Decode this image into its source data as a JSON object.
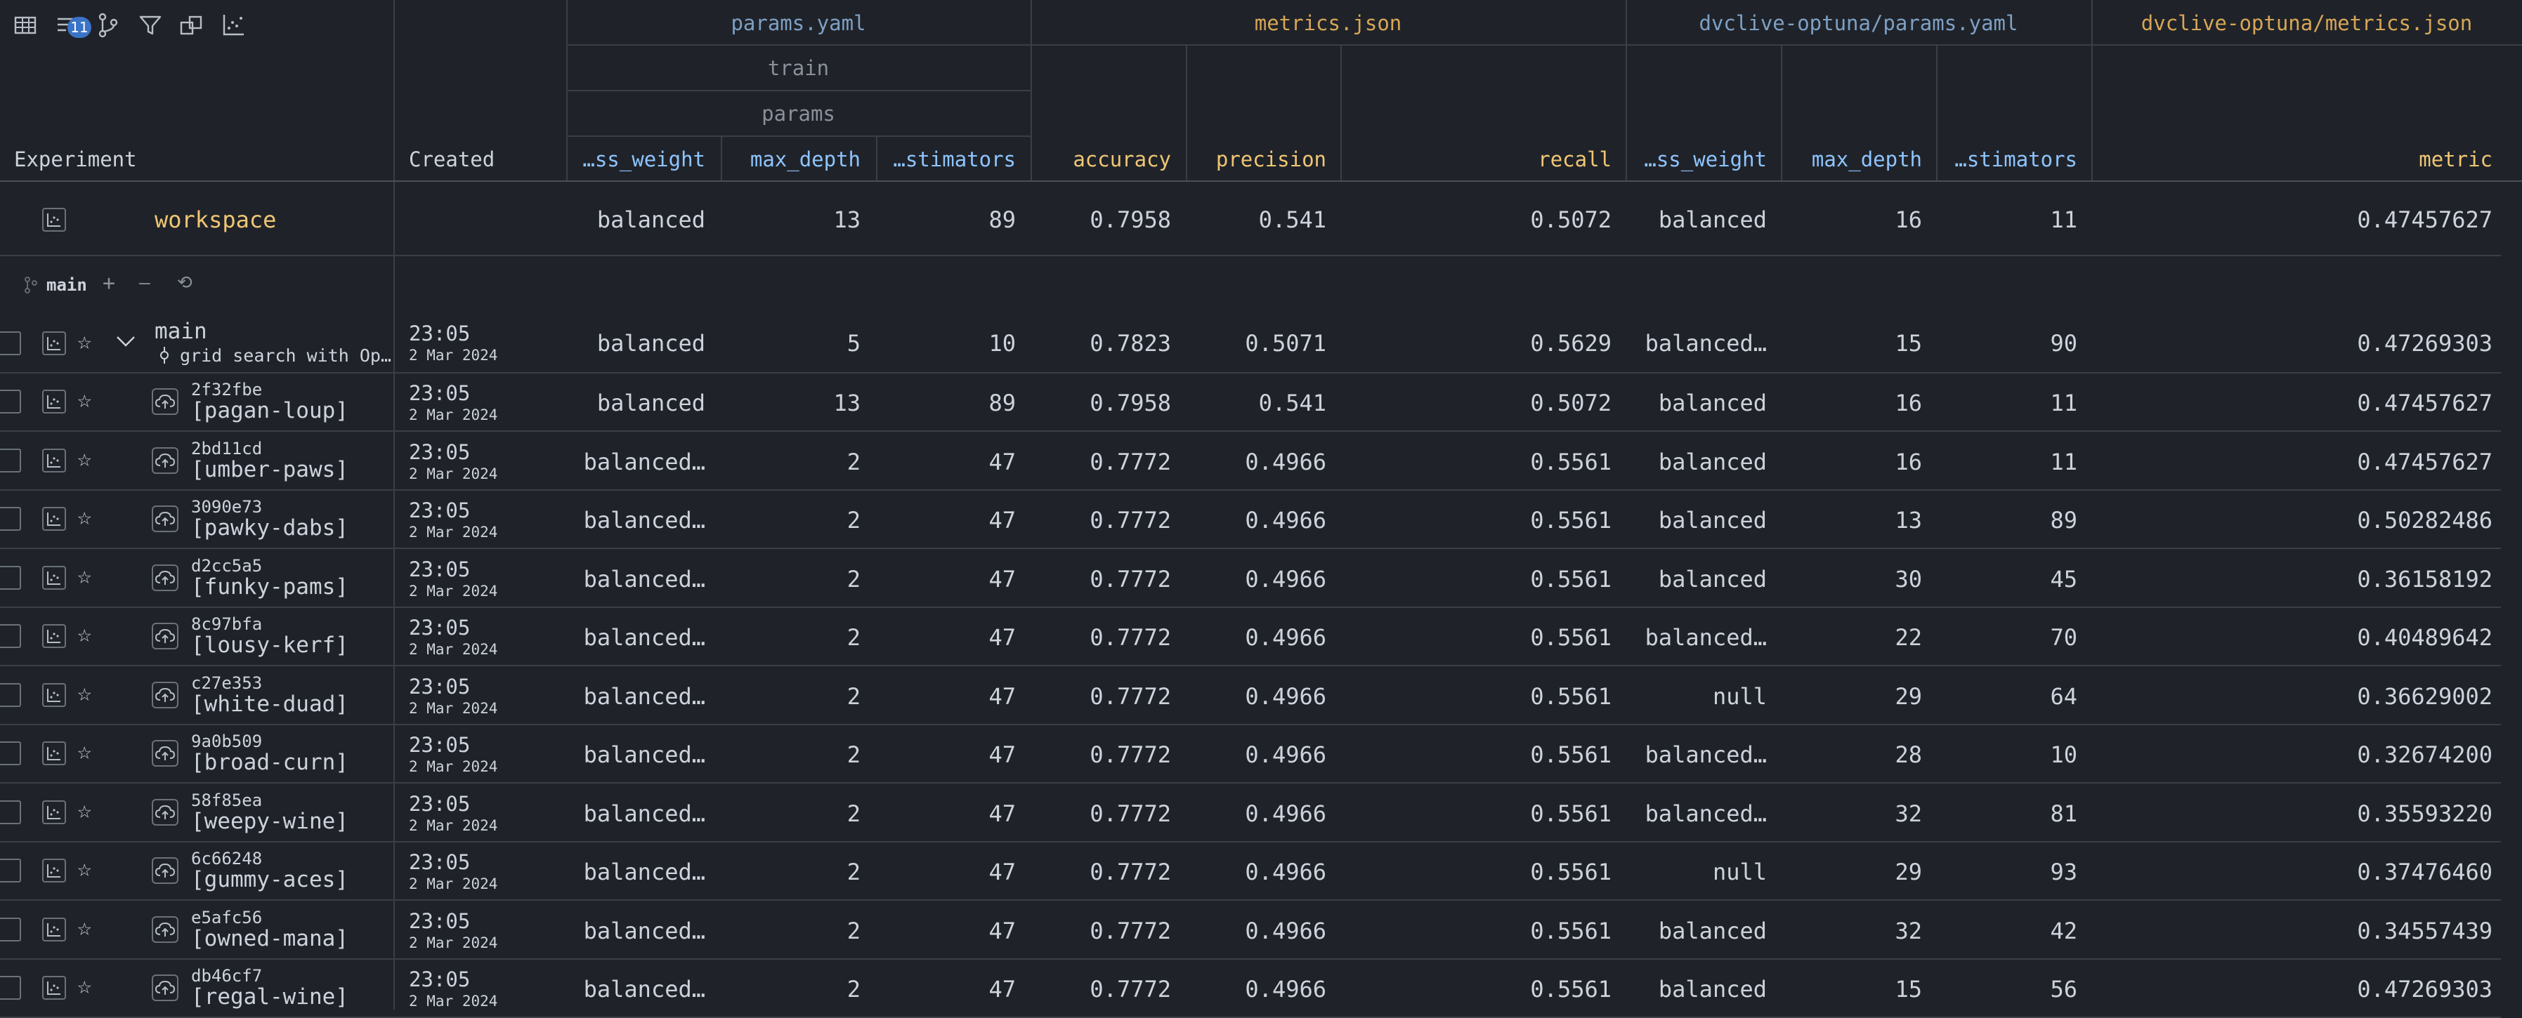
{
  "toolbar": {
    "icons": [
      "table-icon",
      "sort-icon",
      "branch-icon",
      "filter-icon",
      "columns-icon",
      "plots-icon"
    ],
    "sort_badge": "11"
  },
  "header": {
    "experiment_label": "Experiment",
    "created_label": "Created",
    "groups": {
      "params_yaml": "params.yaml",
      "metrics_json": "metrics.json",
      "dvclive_params": "dvclive-optuna/params.yaml",
      "dvclive_metrics": "dvclive-optuna/metrics.json"
    },
    "sub_train": "train",
    "sub_params": "params",
    "columns": [
      "…ss_weight",
      "max_depth",
      "…stimators",
      "accuracy",
      "precision",
      "recall",
      "…ss_weight",
      "max_depth",
      "…stimators",
      "metric"
    ]
  },
  "workspace": {
    "label": "workspace",
    "values": [
      "balanced",
      "13",
      "89",
      "0.7958",
      "0.541",
      "0.5072",
      "balanced",
      "16",
      "11",
      "0.47457627"
    ]
  },
  "branch": {
    "label": "main",
    "actions": [
      "+",
      "—",
      "⟲"
    ]
  },
  "main_row": {
    "name": "main",
    "commit_message": "grid search with Op…",
    "time": "23:05",
    "date": "2 Mar 2024",
    "values": [
      "balanced",
      "5",
      "10",
      "0.7823",
      "0.5071",
      "0.5629",
      "balanced…",
      "15",
      "90",
      "0.47269303"
    ]
  },
  "rows": [
    {
      "sha": "2f32fbe",
      "name": "[pagan-loup]",
      "time": "23:05",
      "date": "2 Mar 2024",
      "values": [
        "balanced",
        "13",
        "89",
        "0.7958",
        "0.541",
        "0.5072",
        "balanced",
        "16",
        "11",
        "0.47457627"
      ]
    },
    {
      "sha": "2bd11cd",
      "name": "[umber-paws]",
      "time": "23:05",
      "date": "2 Mar 2024",
      "values": [
        "balanced…",
        "2",
        "47",
        "0.7772",
        "0.4966",
        "0.5561",
        "balanced",
        "16",
        "11",
        "0.47457627"
      ]
    },
    {
      "sha": "3090e73",
      "name": "[pawky-dabs]",
      "time": "23:05",
      "date": "2 Mar 2024",
      "values": [
        "balanced…",
        "2",
        "47",
        "0.7772",
        "0.4966",
        "0.5561",
        "balanced",
        "13",
        "89",
        "0.50282486"
      ]
    },
    {
      "sha": "d2cc5a5",
      "name": "[funky-pams]",
      "time": "23:05",
      "date": "2 Mar 2024",
      "values": [
        "balanced…",
        "2",
        "47",
        "0.7772",
        "0.4966",
        "0.5561",
        "balanced",
        "30",
        "45",
        "0.36158192"
      ]
    },
    {
      "sha": "8c97bfa",
      "name": "[lousy-kerf]",
      "time": "23:05",
      "date": "2 Mar 2024",
      "values": [
        "balanced…",
        "2",
        "47",
        "0.7772",
        "0.4966",
        "0.5561",
        "balanced…",
        "22",
        "70",
        "0.40489642"
      ]
    },
    {
      "sha": "c27e353",
      "name": "[white-duad]",
      "time": "23:05",
      "date": "2 Mar 2024",
      "values": [
        "balanced…",
        "2",
        "47",
        "0.7772",
        "0.4966",
        "0.5561",
        "null",
        "29",
        "64",
        "0.36629002"
      ]
    },
    {
      "sha": "9a0b509",
      "name": "[broad-curn]",
      "time": "23:05",
      "date": "2 Mar 2024",
      "values": [
        "balanced…",
        "2",
        "47",
        "0.7772",
        "0.4966",
        "0.5561",
        "balanced…",
        "28",
        "10",
        "0.32674200"
      ]
    },
    {
      "sha": "58f85ea",
      "name": "[weepy-wine]",
      "time": "23:05",
      "date": "2 Mar 2024",
      "values": [
        "balanced…",
        "2",
        "47",
        "0.7772",
        "0.4966",
        "0.5561",
        "balanced…",
        "32",
        "81",
        "0.35593220"
      ]
    },
    {
      "sha": "6c66248",
      "name": "[gummy-aces]",
      "time": "23:05",
      "date": "2 Mar 2024",
      "values": [
        "balanced…",
        "2",
        "47",
        "0.7772",
        "0.4966",
        "0.5561",
        "null",
        "29",
        "93",
        "0.37476460"
      ]
    },
    {
      "sha": "e5afc56",
      "name": "[owned-mana]",
      "time": "23:05",
      "date": "2 Mar 2024",
      "values": [
        "balanced…",
        "2",
        "47",
        "0.7772",
        "0.4966",
        "0.5561",
        "balanced",
        "32",
        "42",
        "0.34557439"
      ]
    },
    {
      "sha": "db46cf7",
      "name": "[regal-wine]",
      "time": "23:05",
      "date": "2 Mar 2024",
      "values": [
        "balanced…",
        "2",
        "47",
        "0.7772",
        "0.4966",
        "0.5561",
        "balanced",
        "15",
        "56",
        "0.47269303"
      ]
    }
  ],
  "colors": {
    "background": "#1f2329",
    "param_header": "#8fc4ff",
    "metric_header": "#f0c674",
    "workspace_text": "#f0c674",
    "badge": "#3b73c7"
  }
}
